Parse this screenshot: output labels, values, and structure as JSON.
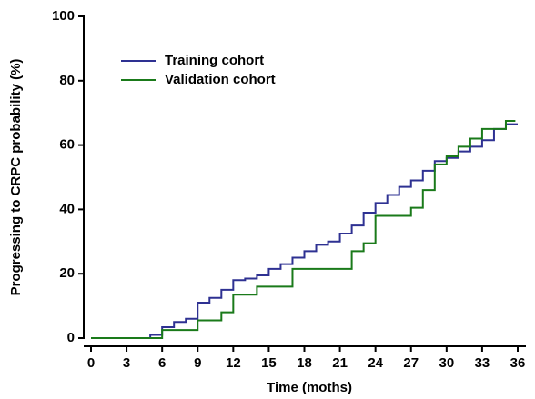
{
  "chart_data": {
    "type": "line",
    "step": "post",
    "x_label": "Time (moths)",
    "y_label": "Progressing to CRPC probability (%)",
    "xlim": [
      0,
      36
    ],
    "xticks": [
      0,
      3,
      6,
      9,
      12,
      15,
      18,
      21,
      24,
      27,
      30,
      33,
      36
    ],
    "ylim": [
      0,
      100
    ],
    "yticks": [
      0,
      20,
      40,
      60,
      80,
      100
    ],
    "legend": "upper left",
    "series": [
      {
        "name": "Training cohort",
        "color": "#2e3192",
        "x": [
          0,
          5,
          6,
          7,
          8,
          9,
          10,
          11,
          12,
          13,
          14,
          15,
          16,
          17,
          18,
          19,
          20,
          21,
          22,
          23,
          24,
          25,
          26,
          27,
          28,
          29,
          30,
          31,
          32,
          33,
          34,
          35,
          36
        ],
        "values": [
          0,
          1,
          3.4,
          5,
          6,
          11,
          12.5,
          15,
          18,
          18.5,
          19.5,
          21.5,
          23,
          25,
          27,
          29,
          30,
          32.5,
          35,
          39,
          42,
          44.5,
          47,
          49,
          52,
          55,
          56,
          58,
          59.5,
          61.5,
          65,
          66.5,
          66.5
        ]
      },
      {
        "name": "Validation cohort",
        "color": "#1a7a1a",
        "x": [
          0,
          6,
          9,
          11,
          12,
          14,
          17,
          22,
          23,
          24,
          27,
          28,
          29,
          30,
          31,
          32,
          33,
          35,
          35.8
        ],
        "values": [
          0,
          2.5,
          5.5,
          8,
          13.5,
          16,
          21.5,
          27,
          29.5,
          38,
          40.5,
          46,
          54,
          56.5,
          59.5,
          62,
          65,
          67.5,
          67.5
        ]
      }
    ]
  }
}
